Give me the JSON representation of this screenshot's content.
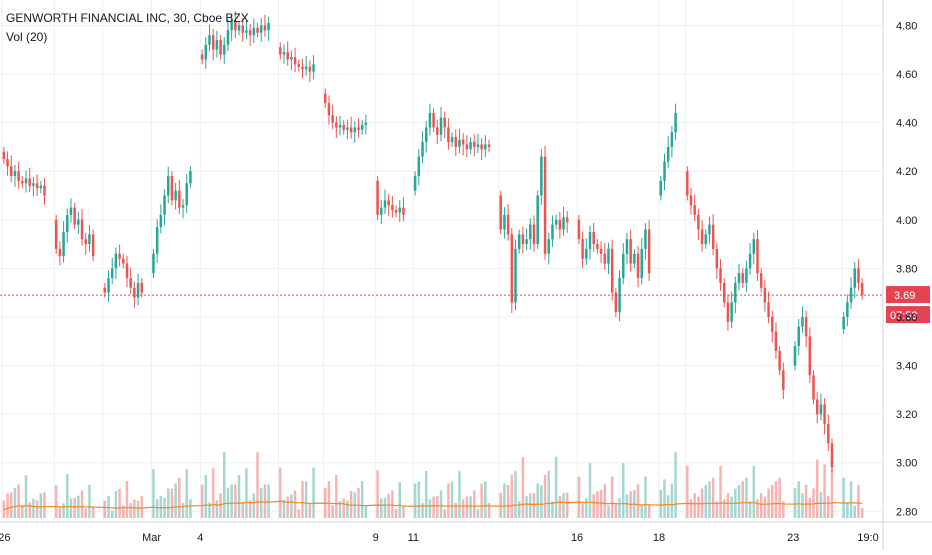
{
  "legend": {
    "symbol_line": "GENWORTH FINANCIAL INC, 30, Cboe BZX",
    "indicator_line": "Vol (20)"
  },
  "colors": {
    "up": "#26a69a",
    "down": "#ef5350",
    "up_volume": "#a5d6cf",
    "down_volume": "#f7b3b1",
    "volume_ma": "#f08a24",
    "price_line": "#e54350",
    "grid": "#eceff2",
    "axis_text": "#131722"
  },
  "chart_data": {
    "type": "candlestick",
    "title": "GENWORTH FINANCIAL INC, 30, Cboe BZX",
    "indicator": "Vol (20)",
    "ylim": [
      2.76,
      4.88
    ],
    "y_ticks": [
      "4.80",
      "4.60",
      "4.40",
      "4.20",
      "4.00",
      "3.80",
      "3.60",
      "3.40",
      "3.20",
      "3.00",
      "2.80"
    ],
    "x_ticks": [
      "26",
      "Mar",
      "4",
      "9",
      "11",
      "16",
      "18",
      "23",
      "19:0"
    ],
    "last_price": "3.69",
    "countdown": "07:53",
    "legend": "top-left",
    "grid": true,
    "sessions": [
      {
        "open": 4.28,
        "high": 4.29,
        "low": 4.23,
        "close": 4.26,
        "bars": [
          [
            4.28,
            4.25
          ],
          [
            4.25,
            4.22
          ],
          [
            4.22,
            4.18
          ],
          [
            4.18,
            4.2
          ],
          [
            4.2,
            4.16
          ],
          [
            4.16,
            4.15
          ],
          [
            4.15,
            4.17
          ],
          [
            4.17,
            4.14
          ],
          [
            4.14,
            4.15
          ],
          [
            4.15,
            4.13
          ],
          [
            4.13,
            4.14
          ],
          [
            4.14,
            4.1
          ]
        ],
        "volume": [
          0.7,
          0.5,
          0.35
        ]
      },
      {
        "bars": [
          [
            4.0,
            3.88
          ],
          [
            3.88,
            3.85
          ],
          [
            3.85,
            3.95
          ],
          [
            3.95,
            4.02
          ],
          [
            4.02,
            4.05
          ],
          [
            4.05,
            3.98
          ],
          [
            3.98,
            4.0
          ],
          [
            4.0,
            3.92
          ],
          [
            3.92,
            3.9
          ],
          [
            3.9,
            3.94
          ],
          [
            3.94,
            3.85
          ]
        ],
        "volume": [
          0.6,
          0.45,
          0.3
        ]
      },
      {
        "bars": [
          [
            3.72,
            3.7
          ],
          [
            3.7,
            3.76
          ],
          [
            3.76,
            3.8
          ],
          [
            3.8,
            3.86
          ],
          [
            3.86,
            3.84
          ],
          [
            3.84,
            3.82
          ],
          [
            3.82,
            3.76
          ],
          [
            3.76,
            3.72
          ],
          [
            3.72,
            3.68
          ],
          [
            3.68,
            3.74
          ],
          [
            3.74,
            3.7
          ]
        ],
        "volume": [
          0.55,
          0.4,
          0.3
        ]
      },
      {
        "bars": [
          [
            3.78,
            3.86
          ],
          [
            3.86,
            3.97
          ],
          [
            3.97,
            4.02
          ],
          [
            4.02,
            4.1
          ],
          [
            4.1,
            4.18
          ],
          [
            4.18,
            4.08
          ],
          [
            4.08,
            4.12
          ],
          [
            4.12,
            4.05
          ],
          [
            4.05,
            4.06
          ],
          [
            4.06,
            4.15
          ],
          [
            4.15,
            4.2
          ]
        ],
        "volume": [
          0.8,
          0.6,
          0.4
        ]
      },
      {
        "bars": [
          [
            4.68,
            4.66
          ],
          [
            4.66,
            4.72
          ],
          [
            4.72,
            4.76
          ],
          [
            4.76,
            4.7
          ],
          [
            4.7,
            4.74
          ],
          [
            4.74,
            4.68
          ],
          [
            4.68,
            4.72
          ],
          [
            4.72,
            4.78
          ],
          [
            4.78,
            4.82
          ],
          [
            4.82,
            4.78
          ],
          [
            4.78,
            4.8
          ],
          [
            4.8,
            4.77
          ],
          [
            4.77,
            4.78
          ],
          [
            4.78,
            4.76
          ],
          [
            4.76,
            4.79
          ],
          [
            4.79,
            4.77
          ],
          [
            4.77,
            4.8
          ],
          [
            4.8,
            4.78
          ],
          [
            4.78,
            4.81
          ]
        ],
        "volume": [
          0.9,
          0.7,
          0.5
        ]
      },
      {
        "bars": [
          [
            4.71,
            4.68
          ],
          [
            4.68,
            4.69
          ],
          [
            4.69,
            4.66
          ],
          [
            4.66,
            4.67
          ],
          [
            4.67,
            4.64
          ],
          [
            4.64,
            4.63
          ],
          [
            4.63,
            4.62
          ],
          [
            4.62,
            4.63
          ],
          [
            4.63,
            4.61
          ],
          [
            4.61,
            4.64
          ]
        ],
        "volume": [
          0.75,
          0.5,
          0.35
        ]
      },
      {
        "bars": [
          [
            4.52,
            4.48
          ],
          [
            4.48,
            4.43
          ],
          [
            4.43,
            4.4
          ],
          [
            4.4,
            4.38
          ],
          [
            4.38,
            4.39
          ],
          [
            4.39,
            4.37
          ],
          [
            4.37,
            4.38
          ],
          [
            4.38,
            4.36
          ],
          [
            4.36,
            4.38
          ],
          [
            4.38,
            4.37
          ],
          [
            4.37,
            4.39
          ],
          [
            4.39,
            4.4
          ]
        ],
        "volume": [
          0.7,
          0.55,
          0.35
        ]
      },
      {
        "bars": [
          [
            4.16,
            4.02
          ],
          [
            4.02,
            4.05
          ],
          [
            4.05,
            4.08
          ],
          [
            4.08,
            4.06
          ],
          [
            4.06,
            4.04
          ],
          [
            4.04,
            4.03
          ],
          [
            4.03,
            4.05
          ],
          [
            4.05,
            4.02
          ]
        ],
        "volume": [
          0.65,
          0.45,
          0.3
        ]
      },
      {
        "bars": [
          [
            4.12,
            4.18
          ],
          [
            4.18,
            4.26
          ],
          [
            4.26,
            4.32
          ],
          [
            4.32,
            4.38
          ],
          [
            4.38,
            4.44
          ],
          [
            4.44,
            4.38
          ],
          [
            4.38,
            4.35
          ],
          [
            4.35,
            4.42
          ],
          [
            4.42,
            4.38
          ],
          [
            4.38,
            4.32
          ],
          [
            4.32,
            4.34
          ],
          [
            4.34,
            4.3
          ],
          [
            4.3,
            4.33
          ],
          [
            4.33,
            4.31
          ],
          [
            4.31,
            4.29
          ],
          [
            4.29,
            4.32
          ],
          [
            4.32,
            4.3
          ],
          [
            4.3,
            4.31
          ],
          [
            4.31,
            4.29
          ],
          [
            4.29,
            4.31
          ],
          [
            4.31,
            4.3
          ]
        ],
        "volume": [
          0.7,
          0.5,
          0.35
        ]
      },
      {
        "bars": [
          [
            4.1,
            3.96
          ],
          [
            3.96,
            4.02
          ],
          [
            4.02,
            3.94
          ],
          [
            3.94,
            3.66
          ],
          [
            3.66,
            3.88
          ],
          [
            3.88,
            3.94
          ],
          [
            3.94,
            3.9
          ],
          [
            3.9,
            3.92
          ],
          [
            3.92,
            3.98
          ],
          [
            3.98,
            3.9
          ],
          [
            3.9,
            4.1
          ],
          [
            4.1,
            4.26
          ],
          [
            4.26,
            3.86
          ],
          [
            3.86,
            3.92
          ],
          [
            3.92,
            3.98
          ],
          [
            3.98,
            4.0
          ],
          [
            4.0,
            3.96
          ],
          [
            3.96,
            4.01
          ],
          [
            4.01,
            3.99
          ]
        ],
        "volume": [
          1.0,
          0.7,
          0.45
        ]
      },
      {
        "bars": [
          [
            4.0,
            3.92
          ],
          [
            3.92,
            3.84
          ],
          [
            3.84,
            3.88
          ],
          [
            3.88,
            3.95
          ],
          [
            3.95,
            3.9
          ],
          [
            3.9,
            3.88
          ],
          [
            3.88,
            3.86
          ],
          [
            3.86,
            3.82
          ],
          [
            3.82,
            3.88
          ],
          [
            3.88,
            3.7
          ],
          [
            3.7,
            3.62
          ],
          [
            3.62,
            3.76
          ],
          [
            3.76,
            3.86
          ],
          [
            3.86,
            3.92
          ],
          [
            3.92,
            3.82
          ],
          [
            3.82,
            3.86
          ],
          [
            3.86,
            3.76
          ],
          [
            3.76,
            3.88
          ],
          [
            3.88,
            3.96
          ],
          [
            3.96,
            3.78
          ]
        ],
        "volume": [
          0.75,
          0.55,
          0.4
        ]
      },
      {
        "bars": [
          [
            4.1,
            4.16
          ],
          [
            4.16,
            4.24
          ],
          [
            4.24,
            4.3
          ],
          [
            4.3,
            4.36
          ],
          [
            4.36,
            4.44
          ]
        ],
        "volume": [
          0.9,
          0.7
        ]
      },
      {
        "bars": [
          [
            4.2,
            4.1
          ],
          [
            4.1,
            4.06
          ],
          [
            4.06,
            4.02
          ],
          [
            4.02,
            3.96
          ],
          [
            3.96,
            3.9
          ],
          [
            3.9,
            3.94
          ],
          [
            3.94,
            3.98
          ],
          [
            3.98,
            3.88
          ],
          [
            3.88,
            3.8
          ],
          [
            3.8,
            3.74
          ],
          [
            3.74,
            3.66
          ],
          [
            3.66,
            3.58
          ],
          [
            3.58,
            3.66
          ],
          [
            3.66,
            3.74
          ],
          [
            3.74,
            3.78
          ],
          [
            3.78,
            3.74
          ],
          [
            3.74,
            3.8
          ],
          [
            3.8,
            3.86
          ],
          [
            3.86,
            3.92
          ],
          [
            3.92,
            3.78
          ],
          [
            3.78,
            3.72
          ],
          [
            3.72,
            3.66
          ],
          [
            3.66,
            3.6
          ],
          [
            3.6,
            3.54
          ],
          [
            3.54,
            3.46
          ],
          [
            3.46,
            3.38
          ],
          [
            3.38,
            3.3
          ]
        ],
        "volume": [
          0.85,
          0.6,
          0.45
        ]
      },
      {
        "bars": [
          [
            3.4,
            3.48
          ],
          [
            3.48,
            3.56
          ],
          [
            3.56,
            3.6
          ],
          [
            3.6,
            3.52
          ],
          [
            3.52,
            3.36
          ],
          [
            3.36,
            3.26
          ],
          [
            3.26,
            3.2
          ],
          [
            3.2,
            3.24
          ],
          [
            3.24,
            3.16
          ],
          [
            3.16,
            3.08
          ],
          [
            3.08,
            2.98
          ]
        ],
        "volume": [
          0.8,
          0.6
        ]
      },
      {
        "bars": [
          [
            3.55,
            3.6
          ],
          [
            3.6,
            3.66
          ],
          [
            3.66,
            3.72
          ],
          [
            3.72,
            3.8
          ],
          [
            3.8,
            3.74
          ],
          [
            3.74,
            3.69
          ]
        ],
        "volume": [
          0.6,
          0.4
        ]
      }
    ]
  }
}
